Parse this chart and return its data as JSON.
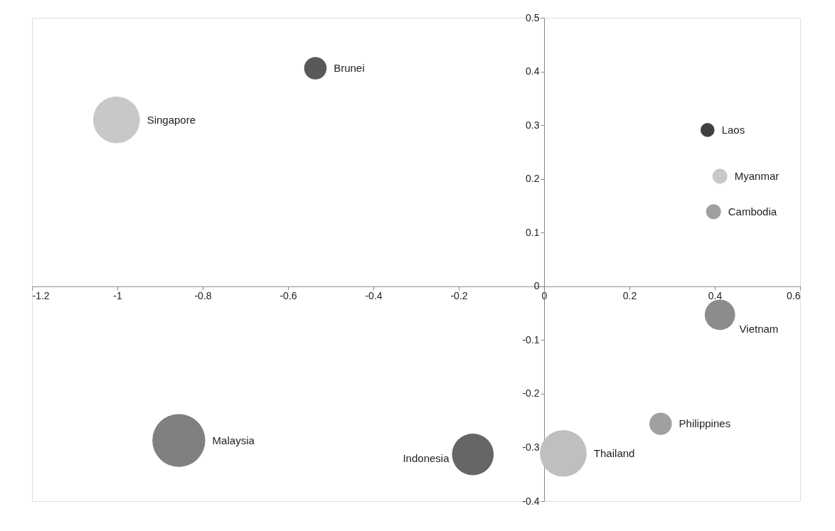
{
  "chart_data": {
    "type": "bubble",
    "xlim": [
      -1.2,
      0.6
    ],
    "ylim": [
      -0.4,
      0.5
    ],
    "xticks": [
      -1.2,
      -1,
      -0.8,
      -0.6,
      -0.4,
      -0.2,
      0,
      0.2,
      0.4,
      0.6
    ],
    "yticks": [
      -0.4,
      -0.3,
      -0.2,
      -0.1,
      0,
      0.1,
      0.2,
      0.3,
      0.4,
      0.5
    ],
    "grid": false,
    "legend": false,
    "marker": "circle",
    "series": [
      {
        "name": "Brunei",
        "color": "#595959",
        "x": [
          -0.536
        ],
        "values": [
          0.406
        ],
        "sizes": [
          0.18
        ]
      },
      {
        "name": "Singapore",
        "color": "#c8c8c8",
        "x": [
          -1.002
        ],
        "values": [
          0.31
        ],
        "sizes": [
          0.78
        ]
      },
      {
        "name": "Laos",
        "color": "#404040",
        "x": [
          0.383
        ],
        "values": [
          0.291
        ],
        "sizes": [
          0.07
        ]
      },
      {
        "name": "Myanmar",
        "color": "#c8c8c8",
        "x": [
          0.412
        ],
        "values": [
          0.205
        ],
        "sizes": [
          0.08
        ]
      },
      {
        "name": "Cambodia",
        "color": "#a0a0a0",
        "x": [
          0.397
        ],
        "values": [
          0.139
        ],
        "sizes": [
          0.08
        ]
      },
      {
        "name": "Vietnam",
        "color": "#8c8c8c",
        "x": [
          0.412
        ],
        "values": [
          -0.053
        ],
        "sizes": [
          0.33
        ]
      },
      {
        "name": "Philippines",
        "color": "#a0a0a0",
        "x": [
          0.273
        ],
        "values": [
          -0.256
        ],
        "sizes": [
          0.18
        ]
      },
      {
        "name": "Thailand",
        "color": "#bfbfbf",
        "x": [
          0.045
        ],
        "values": [
          -0.311
        ],
        "sizes": [
          0.78
        ]
      },
      {
        "name": "Indonesia",
        "color": "#666666",
        "x": [
          -0.167
        ],
        "values": [
          -0.313
        ],
        "sizes": [
          0.62
        ]
      },
      {
        "name": "Malaysia",
        "color": "#808080",
        "x": [
          -0.856
        ],
        "values": [
          -0.287
        ],
        "sizes": [
          1.0
        ]
      }
    ]
  }
}
